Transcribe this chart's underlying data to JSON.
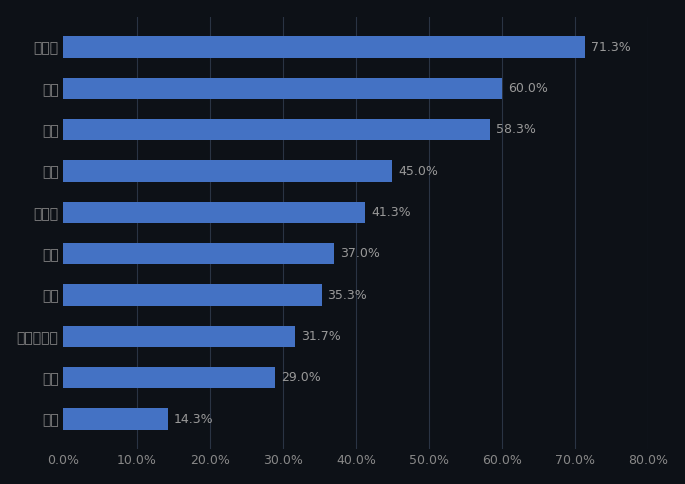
{
  "categories": [
    "飞利浦",
    "松下",
    "小米",
    "欧普",
    "孩视宝",
    "明基",
    "雷士",
    "爱德华医生",
    "美的",
    "良亮"
  ],
  "values": [
    71.3,
    60.0,
    58.3,
    45.0,
    41.3,
    37.0,
    35.3,
    31.7,
    29.0,
    14.3
  ],
  "bar_color": "#4472C4",
  "background_color": "#0D1117",
  "text_color": "#888888",
  "label_color": "#999999",
  "grid_color": "#2A3444",
  "xlim": [
    0,
    80
  ],
  "xticks": [
    0,
    10,
    20,
    30,
    40,
    50,
    60,
    70,
    80
  ],
  "xtick_labels": [
    "0.0%",
    "10.0%",
    "20.0%",
    "30.0%",
    "40.0%",
    "50.0%",
    "60.0%",
    "70.0%",
    "80.0%"
  ],
  "bar_height": 0.52,
  "fontsize_labels": 10,
  "fontsize_values": 9,
  "fontsize_ticks": 9
}
